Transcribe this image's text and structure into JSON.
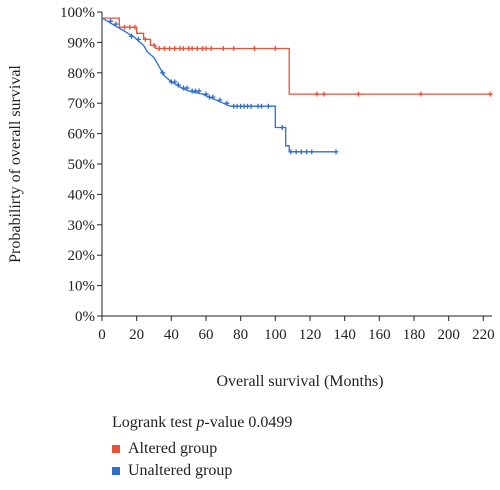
{
  "chart_data": {
    "type": "line",
    "subtype": "kaplan-meier",
    "xlabel": "Overall survival (Months)",
    "ylabel": "Probabilirty of overall survival",
    "xlim": [
      0,
      225
    ],
    "ylim": [
      0,
      100
    ],
    "x_ticks": [
      0,
      20,
      40,
      60,
      80,
      100,
      120,
      140,
      160,
      180,
      200,
      220
    ],
    "y_ticks": [
      0,
      10,
      20,
      30,
      40,
      50,
      60,
      70,
      80,
      90,
      100
    ],
    "y_tick_labels": [
      "0%",
      "10%",
      "20%",
      "30%",
      "40%",
      "50%",
      "60%",
      "70%",
      "80%",
      "90%",
      "100%"
    ],
    "grid": false,
    "annotation": {
      "prefix": "Logrank test ",
      "p": "p",
      "suffix": "-value 0.0499"
    },
    "series": [
      {
        "name": "Altered group",
        "color": "#e8533a",
        "steps": [
          [
            0,
            98
          ],
          [
            10,
            98
          ],
          [
            10,
            95
          ],
          [
            20,
            95
          ],
          [
            20,
            93
          ],
          [
            24,
            93
          ],
          [
            24,
            91
          ],
          [
            28,
            91
          ],
          [
            28,
            89
          ],
          [
            31,
            89
          ],
          [
            31,
            88
          ],
          [
            108,
            88
          ],
          [
            108,
            73
          ],
          [
            225,
            73
          ]
        ],
        "censor": [
          [
            13,
            95
          ],
          [
            16,
            95
          ],
          [
            19,
            95
          ],
          [
            25,
            91
          ],
          [
            30,
            89
          ],
          [
            33,
            88
          ],
          [
            36,
            88
          ],
          [
            39,
            88
          ],
          [
            42,
            88
          ],
          [
            45,
            88
          ],
          [
            47,
            88
          ],
          [
            50,
            88
          ],
          [
            52,
            88
          ],
          [
            55,
            88
          ],
          [
            58,
            88
          ],
          [
            60,
            88
          ],
          [
            63,
            88
          ],
          [
            70,
            88
          ],
          [
            76,
            88
          ],
          [
            88,
            88
          ],
          [
            100,
            88
          ],
          [
            124,
            73
          ],
          [
            128,
            73
          ],
          [
            148,
            73
          ],
          [
            184,
            73
          ],
          [
            224,
            73
          ]
        ]
      },
      {
        "name": "Unaltered group",
        "color": "#2e6fcb",
        "steps": [
          [
            0,
            98
          ],
          [
            3,
            97
          ],
          [
            6,
            96
          ],
          [
            9,
            95
          ],
          [
            12,
            94
          ],
          [
            15,
            93
          ],
          [
            18,
            92
          ],
          [
            20,
            91
          ],
          [
            22,
            90
          ],
          [
            24,
            89
          ],
          [
            26,
            87
          ],
          [
            28,
            86
          ],
          [
            30,
            85
          ],
          [
            32,
            83
          ],
          [
            34,
            81
          ],
          [
            36,
            79
          ],
          [
            38,
            78
          ],
          [
            40,
            77
          ],
          [
            43,
            76
          ],
          [
            46,
            75
          ],
          [
            50,
            74
          ],
          [
            58,
            73
          ],
          [
            62,
            72
          ],
          [
            66,
            71
          ],
          [
            70,
            70
          ],
          [
            74,
            69
          ],
          [
            100,
            69
          ],
          [
            100,
            62
          ],
          [
            106,
            62
          ],
          [
            106,
            56
          ],
          [
            108,
            56
          ],
          [
            108,
            54
          ],
          [
            135,
            54
          ]
        ],
        "censor": [
          [
            5,
            97
          ],
          [
            8,
            96
          ],
          [
            17,
            92
          ],
          [
            21,
            91
          ],
          [
            35,
            80
          ],
          [
            40,
            77
          ],
          [
            42,
            77
          ],
          [
            44,
            76
          ],
          [
            47,
            75
          ],
          [
            49,
            75
          ],
          [
            52,
            74
          ],
          [
            54,
            74
          ],
          [
            56,
            74
          ],
          [
            60,
            73
          ],
          [
            62,
            72
          ],
          [
            64,
            72
          ],
          [
            68,
            71
          ],
          [
            72,
            70
          ],
          [
            76,
            69
          ],
          [
            78,
            69
          ],
          [
            80,
            69
          ],
          [
            82,
            69
          ],
          [
            84,
            69
          ],
          [
            86,
            69
          ],
          [
            90,
            69
          ],
          [
            92,
            69
          ],
          [
            96,
            69
          ],
          [
            104,
            62
          ],
          [
            109,
            54
          ],
          [
            112,
            54
          ],
          [
            115,
            54
          ],
          [
            118,
            54
          ],
          [
            121,
            54
          ],
          [
            135,
            54
          ]
        ]
      }
    ]
  }
}
